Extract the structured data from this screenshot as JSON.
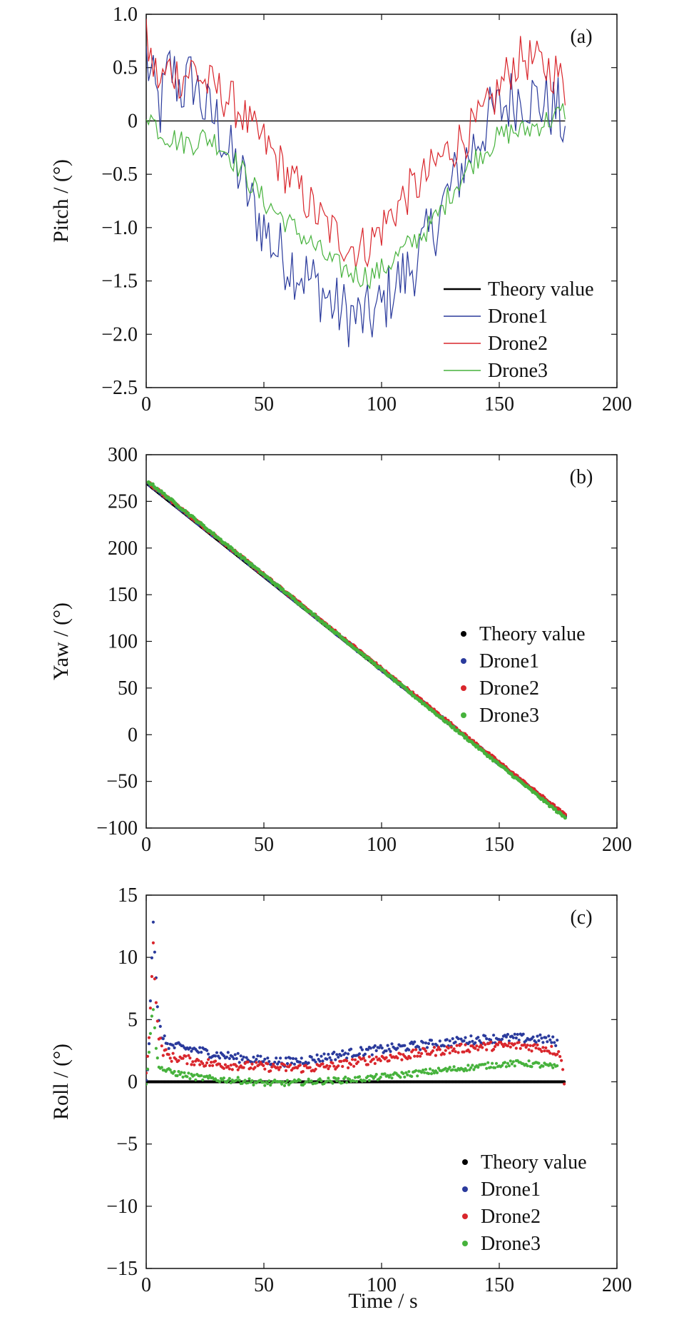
{
  "figure": {
    "xlabel": "Time / s"
  },
  "chart_data": [
    {
      "type": "line",
      "panel_label": "(a)",
      "ylabel": "Pitch / (°)",
      "xlabel": "",
      "xlim": [
        0,
        200
      ],
      "ylim": [
        -2.5,
        1.0
      ],
      "xticks": [
        0,
        50,
        100,
        150,
        200
      ],
      "yticks": [
        1.0,
        0.5,
        0,
        -0.5,
        -1.0,
        -1.5,
        -2.0,
        -2.5
      ],
      "ytick_labels": [
        "1.0",
        "0.5",
        "0",
        "−0.5",
        "−1.0",
        "−1.5",
        "−2.0",
        "−2.5"
      ],
      "legend_position": "bottom-right",
      "grid": false,
      "series": [
        {
          "name": "Theory value",
          "color": "#000000",
          "x": [
            0,
            178
          ],
          "y": [
            0,
            0
          ]
        },
        {
          "name": "Drone1",
          "color": "#2a3a9c",
          "x": [
            0,
            3,
            6,
            10,
            15,
            20,
            25,
            30,
            35,
            40,
            45,
            50,
            55,
            60,
            65,
            70,
            75,
            80,
            85,
            90,
            95,
            100,
            105,
            110,
            115,
            120,
            125,
            130,
            135,
            140,
            145,
            150,
            155,
            160,
            165,
            170,
            175,
            178
          ],
          "y": [
            0.6,
            0.3,
            0.1,
            0.5,
            0.3,
            0.4,
            0.1,
            0.0,
            -0.3,
            -0.5,
            -0.8,
            -1.0,
            -1.2,
            -1.3,
            -1.4,
            -1.5,
            -1.6,
            -1.75,
            -1.8,
            -1.85,
            -1.85,
            -1.75,
            -1.55,
            -1.45,
            -1.3,
            -1.1,
            -0.85,
            -0.6,
            -0.4,
            -0.2,
            0.0,
            0.1,
            0.2,
            0.25,
            0.2,
            0.15,
            0.1,
            -0.1
          ]
        },
        {
          "name": "Drone2",
          "color": "#d9262c",
          "x": [
            0,
            3,
            6,
            10,
            15,
            20,
            25,
            30,
            35,
            40,
            45,
            50,
            55,
            60,
            65,
            70,
            75,
            80,
            85,
            90,
            95,
            100,
            105,
            110,
            115,
            120,
            125,
            130,
            135,
            140,
            145,
            150,
            155,
            160,
            165,
            170,
            175,
            178
          ],
          "y": [
            0.75,
            0.5,
            0.35,
            0.5,
            0.4,
            0.5,
            0.35,
            0.3,
            0.2,
            0.1,
            -0.1,
            -0.2,
            -0.35,
            -0.5,
            -0.65,
            -0.8,
            -0.95,
            -1.05,
            -1.15,
            -1.2,
            -1.15,
            -1.0,
            -0.85,
            -0.7,
            -0.6,
            -0.5,
            -0.35,
            -0.25,
            -0.15,
            -0.05,
            0.1,
            0.3,
            0.5,
            0.6,
            0.55,
            0.5,
            0.45,
            0.25
          ]
        },
        {
          "name": "Drone3",
          "color": "#46b23c",
          "x": [
            0,
            3,
            6,
            10,
            15,
            20,
            25,
            30,
            35,
            40,
            45,
            50,
            55,
            60,
            65,
            70,
            75,
            80,
            85,
            90,
            95,
            100,
            105,
            110,
            115,
            120,
            125,
            130,
            135,
            140,
            145,
            150,
            155,
            160,
            165,
            170,
            175,
            178
          ],
          "y": [
            0.1,
            0.0,
            -0.1,
            -0.15,
            -0.2,
            -0.2,
            -0.15,
            -0.2,
            -0.3,
            -0.45,
            -0.6,
            -0.75,
            -0.85,
            -0.95,
            -1.05,
            -1.15,
            -1.25,
            -1.35,
            -1.4,
            -1.45,
            -1.45,
            -1.4,
            -1.3,
            -1.2,
            -1.1,
            -1.0,
            -0.85,
            -0.65,
            -0.5,
            -0.35,
            -0.25,
            -0.15,
            -0.1,
            -0.1,
            -0.05,
            0.0,
            0.05,
            0.1
          ]
        }
      ]
    },
    {
      "type": "scatter",
      "panel_label": "(b)",
      "ylabel": "Yaw / (°)",
      "xlabel": "",
      "xlim": [
        0,
        200
      ],
      "ylim": [
        -100,
        300
      ],
      "xticks": [
        0,
        50,
        100,
        150,
        200
      ],
      "yticks": [
        300,
        250,
        200,
        150,
        100,
        50,
        0,
        -50,
        -100
      ],
      "ytick_labels": [
        "300",
        "250",
        "200",
        "150",
        "100",
        "50",
        "0",
        "−50",
        "−100"
      ],
      "legend_position": "center-right",
      "grid": false,
      "series": [
        {
          "name": "Theory value",
          "color": "#000000",
          "x": [
            1,
            178
          ],
          "y": [
            268,
            -87
          ]
        },
        {
          "name": "Drone1",
          "color": "#2a3a9c",
          "x": [
            1,
            178
          ],
          "y": [
            269,
            -87
          ]
        },
        {
          "name": "Drone2",
          "color": "#d9262c",
          "x": [
            1,
            178
          ],
          "y": [
            270,
            -86
          ]
        },
        {
          "name": "Drone3",
          "color": "#46b23c",
          "x": [
            1,
            178
          ],
          "y": [
            271,
            -89
          ]
        }
      ]
    },
    {
      "type": "scatter",
      "panel_label": "(c)",
      "ylabel": "Roll / (°)",
      "xlabel": "Time / s",
      "xlim": [
        0,
        200
      ],
      "ylim": [
        -15,
        15
      ],
      "xticks": [
        0,
        50,
        100,
        150,
        200
      ],
      "yticks": [
        15,
        10,
        5,
        0,
        -5,
        -10,
        -15
      ],
      "ytick_labels": [
        "15",
        "10",
        "5",
        "0",
        "−5",
        "−10",
        "−15"
      ],
      "legend_position": "bottom-right",
      "grid": false,
      "series": [
        {
          "name": "Theory value",
          "color": "#000000",
          "x": [
            0,
            178
          ],
          "y": [
            0,
            0
          ]
        },
        {
          "name": "Drone1",
          "color": "#2a3a9c",
          "x": [
            0,
            1,
            2,
            3,
            4,
            5,
            7,
            10,
            20,
            30,
            40,
            50,
            60,
            70,
            80,
            90,
            100,
            110,
            120,
            130,
            140,
            150,
            160,
            170,
            175
          ],
          "y": [
            0.3,
            2.0,
            8.0,
            13.0,
            9.0,
            5.0,
            3.5,
            2.9,
            2.6,
            2.2,
            1.9,
            1.7,
            1.6,
            1.8,
            2.1,
            2.4,
            2.6,
            2.8,
            3.0,
            3.2,
            3.4,
            3.5,
            3.5,
            3.4,
            3.2
          ]
        },
        {
          "name": "Drone2",
          "color": "#d9262c",
          "x": [
            0,
            1,
            2,
            3,
            4,
            5,
            7,
            10,
            20,
            30,
            40,
            50,
            60,
            70,
            80,
            90,
            100,
            110,
            120,
            130,
            140,
            150,
            160,
            170,
            176,
            178
          ],
          "y": [
            0.5,
            3.0,
            7.0,
            11.0,
            7.0,
            4.0,
            2.5,
            2.0,
            1.7,
            1.4,
            1.3,
            1.2,
            1.1,
            1.1,
            1.3,
            1.6,
            1.9,
            2.1,
            2.4,
            2.6,
            2.8,
            2.9,
            2.9,
            2.7,
            2.3,
            -0.8
          ]
        },
        {
          "name": "Drone3",
          "color": "#46b23c",
          "x": [
            0,
            1,
            2,
            3,
            4,
            5,
            7,
            10,
            20,
            30,
            40,
            50,
            60,
            70,
            80,
            90,
            100,
            110,
            120,
            130,
            140,
            150,
            160,
            170,
            175
          ],
          "y": [
            0.0,
            2.0,
            4.5,
            6.0,
            3.0,
            1.5,
            1.0,
            0.8,
            0.4,
            0.2,
            0.1,
            -0.1,
            -0.1,
            0.0,
            0.1,
            0.2,
            0.4,
            0.6,
            0.8,
            1.0,
            1.2,
            1.4,
            1.5,
            1.3,
            1.1
          ]
        }
      ]
    }
  ]
}
